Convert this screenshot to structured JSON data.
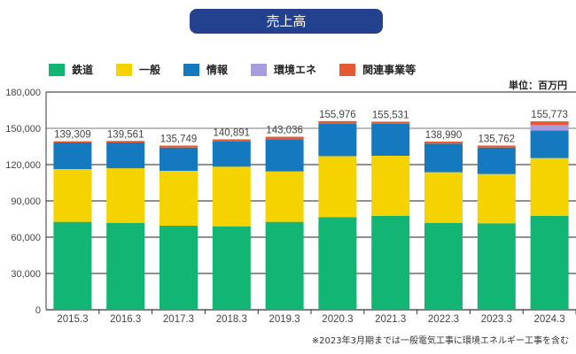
{
  "title": "売上高",
  "unit": "単位：百万円",
  "note": "※2023年3月期までは一般電気工事に環境エネルギー工事を含む",
  "chart_data": {
    "type": "bar",
    "stacked": true,
    "title": "売上高",
    "categories": [
      "2015.3",
      "2016.3",
      "2017.3",
      "2018.3",
      "2019.3",
      "2020.3",
      "2021.3",
      "2022.3",
      "2023.3",
      "2024.3"
    ],
    "series": [
      {
        "name": "鉄道",
        "color": "#12b573",
        "values": [
          72700,
          71700,
          69500,
          69000,
          72700,
          76600,
          77600,
          71700,
          71500,
          77600
        ]
      },
      {
        "name": "一般",
        "color": "#f5d300",
        "values": [
          43600,
          45300,
          45400,
          49300,
          41700,
          50400,
          49700,
          42000,
          40700,
          47800
        ]
      },
      {
        "name": "情報",
        "color": "#1479bf",
        "values": [
          22000,
          21300,
          19200,
          21000,
          26600,
          26900,
          26400,
          23600,
          21900,
          22900
        ]
      },
      {
        "name": "環境エネ",
        "color": "#a99be0",
        "values": [
          0,
          0,
          0,
          0,
          0,
          0,
          0,
          0,
          0,
          4400
        ]
      },
      {
        "name": "関連事業等",
        "color": "#e35b34",
        "values": [
          1009,
          1261,
          1649,
          1591,
          2036,
          2076,
          1831,
          1690,
          1662,
          3073
        ]
      }
    ],
    "totals": [
      "139,309",
      "139,561",
      "135,749",
      "140,891",
      "143,036",
      "155,976",
      "155,531",
      "138,990",
      "135,762",
      "155,773"
    ],
    "yticks": [
      "0",
      "30,000",
      "60,000",
      "90,000",
      "120,000",
      "150,000",
      "180,000"
    ],
    "ylim": [
      0,
      180000
    ],
    "grid": true,
    "legend": "top"
  }
}
